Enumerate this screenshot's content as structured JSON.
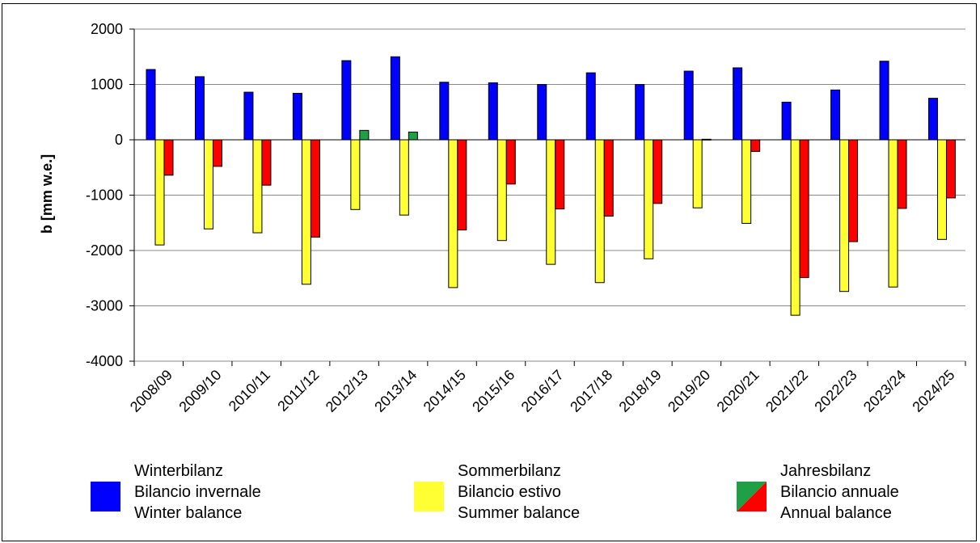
{
  "chart_data": {
    "type": "bar",
    "ylabel": "b  [mm w.e.]",
    "ylim": [
      -4000,
      2000
    ],
    "yticks": [
      2000,
      1000,
      0,
      -1000,
      -2000,
      -3000,
      -4000
    ],
    "ytick_labels": [
      "2000",
      "1000",
      "0",
      "-1000",
      "-2000",
      "-3000",
      "-4000"
    ],
    "grid": true,
    "legend_position": "bottom",
    "categories": [
      "2008/09",
      "2009/10",
      "2010/11",
      "2011/12",
      "2012/13",
      "2013/14",
      "2014/15",
      "2015/16",
      "2016/17",
      "2017/18",
      "2018/19",
      "2019/20",
      "2020/21",
      "2021/22",
      "2022/23",
      "2023/24",
      "2024/25"
    ],
    "series": [
      {
        "name": "Winterbilanz / Bilancio invernale / Winter balance",
        "color": "#0000ff",
        "values": [
          1270,
          1140,
          860,
          840,
          1430,
          1500,
          1040,
          1030,
          1000,
          1210,
          1000,
          1240,
          1300,
          680,
          900,
          1420,
          750
        ]
      },
      {
        "name": "Sommerbilanz / Bilancio estivo / Summer balance",
        "color": "#ffff33",
        "values": [
          -1900,
          -1610,
          -1680,
          -2610,
          -1260,
          -1360,
          -2670,
          -1820,
          -2250,
          -2580,
          -2150,
          -1230,
          -1510,
          -3170,
          -2740,
          -2660,
          -1800
        ]
      },
      {
        "name": "Jahresbilanz / Bilancio annuale / Annual balance",
        "color_positive": "#1fa046",
        "color_negative": "#ff0000",
        "values": [
          -640,
          -480,
          -820,
          -1760,
          170,
          140,
          -1630,
          -800,
          -1250,
          -1380,
          -1150,
          10,
          -210,
          -2490,
          -1840,
          -1240,
          -1050
        ]
      }
    ]
  },
  "legend": [
    {
      "lines": [
        "Winterbilanz",
        "Bilancio invernale",
        "Winter balance"
      ],
      "color": "#0000ff"
    },
    {
      "lines": [
        "Sommerbilanz",
        "Bilancio estivo",
        "Summer balance"
      ],
      "color": "#ffff33"
    },
    {
      "lines": [
        "Jahresbilanz",
        "Bilancio annuale",
        "Annual balance"
      ],
      "color_positive": "#1fa046",
      "color_negative": "#ff0000"
    }
  ]
}
